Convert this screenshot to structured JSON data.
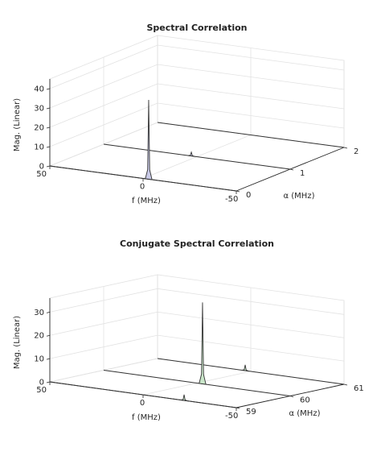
{
  "chart_data": [
    {
      "type": "line",
      "view": "3d-waterfall",
      "title": "Spectral Correlation",
      "xlabel": "f (MHz)",
      "ylabel": "α (MHz)",
      "zlabel": "Mag. (Linear)",
      "xlim": [
        50,
        -50
      ],
      "ylim": [
        0,
        2
      ],
      "zlim": [
        0,
        45
      ],
      "xticks": [
        "50",
        "0",
        "-50"
      ],
      "yticks": [
        "0",
        "1",
        "2"
      ],
      "zticks": [
        "0",
        "10",
        "20",
        "30",
        "40"
      ],
      "fill_color": "#c8c9e6",
      "grid": true,
      "series": [
        {
          "alpha": 0,
          "peaks": [
            {
              "f": -3,
              "mag": 41
            }
          ]
        },
        {
          "alpha": 1,
          "peaks": [
            {
              "f": 3,
              "mag": 2
            }
          ]
        },
        {
          "alpha": 2,
          "peaks": []
        }
      ]
    },
    {
      "type": "line",
      "view": "3d-waterfall",
      "title": "Conjugate Spectral Correlation",
      "xlabel": "f (MHz)",
      "ylabel": "α (MHz)",
      "zlabel": "Mag. (Linear)",
      "xlim": [
        50,
        -50
      ],
      "ylim": [
        59,
        61
      ],
      "zlim": [
        0,
        36
      ],
      "xticks": [
        "50",
        "0",
        "-50"
      ],
      "yticks": [
        "59",
        "60",
        "61"
      ],
      "zticks": [
        "0",
        "10",
        "20",
        "30"
      ],
      "fill_color": "#c9e6c9",
      "grid": true,
      "series": [
        {
          "alpha": 59,
          "peaks": [
            {
              "f": -22,
              "mag": 2.5
            }
          ]
        },
        {
          "alpha": 60,
          "peaks": [
            {
              "f": -3,
              "mag": 35
            }
          ]
        },
        {
          "alpha": 61,
          "peaks": [
            {
              "f": 3,
              "mag": 2.5
            }
          ]
        }
      ]
    }
  ]
}
